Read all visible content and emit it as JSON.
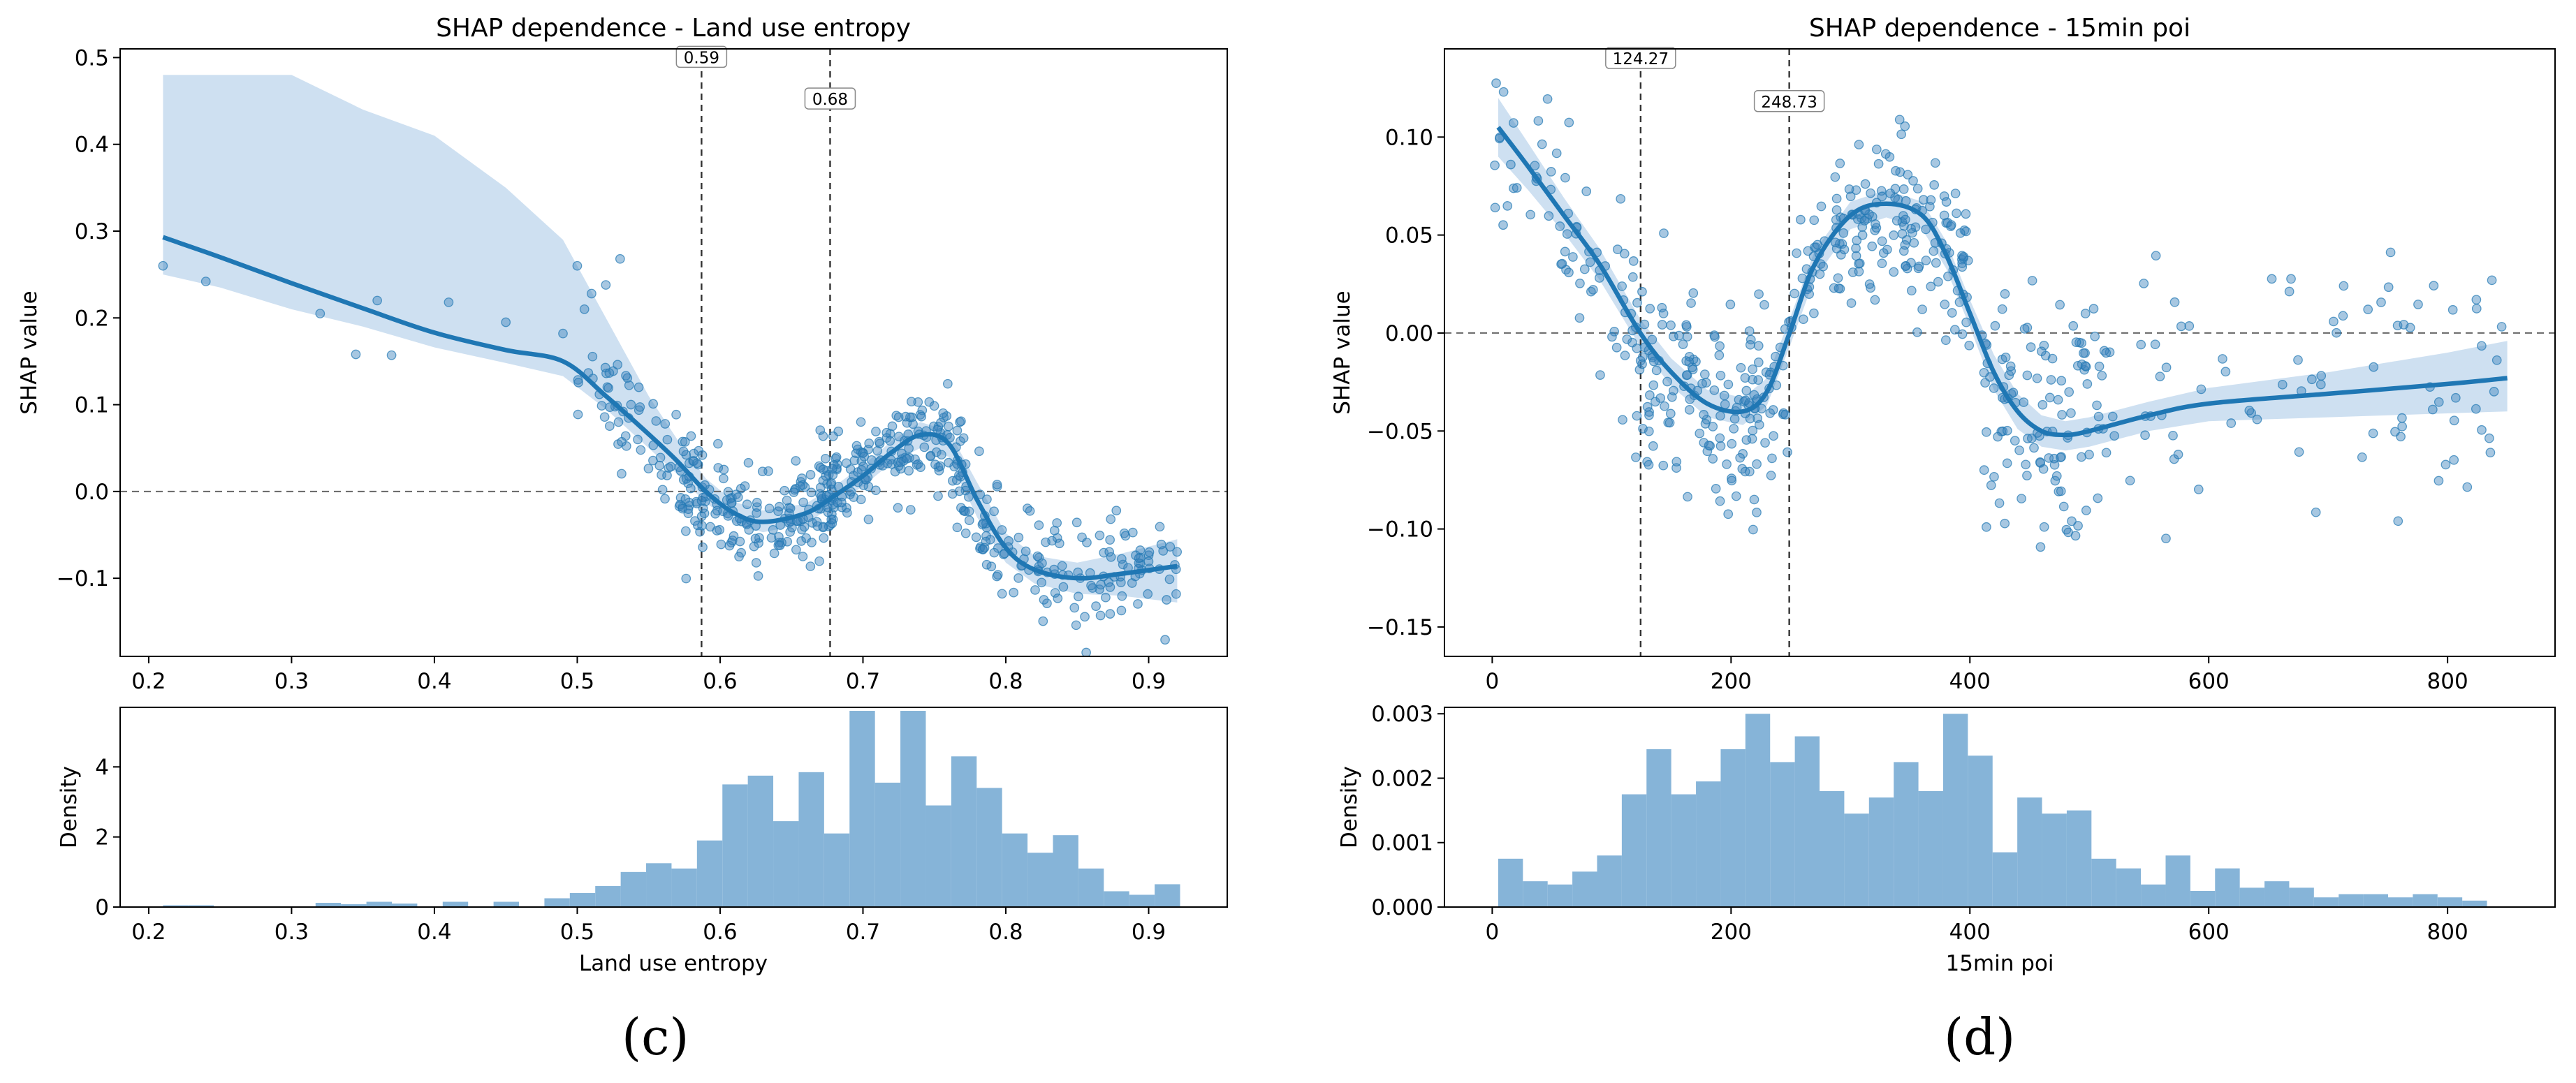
{
  "figure": {
    "panels": [
      "(c)",
      "(d)"
    ]
  },
  "colors": {
    "point": "#3b83bd",
    "line": "#1f77b4",
    "band": "#c6dbef",
    "hist": "#86b4d8"
  },
  "chart_data": [
    {
      "type": "scatter",
      "title": "SHAP dependence - Land use entropy",
      "xlabel": "",
      "ylabel": "SHAP value",
      "xlim": [
        0.18,
        0.955
      ],
      "ylim": [
        -0.19,
        0.51
      ],
      "xticks": [
        0.2,
        0.3,
        0.4,
        0.5,
        0.6,
        0.7,
        0.8,
        0.9
      ],
      "xtick_labels": [
        "0.2",
        "0.3",
        "0.4",
        "0.5",
        "0.6",
        "0.7",
        "0.8",
        "0.9"
      ],
      "yticks": [
        -0.1,
        0.0,
        0.1,
        0.2,
        0.3,
        0.4,
        0.5
      ],
      "ytick_labels": [
        "−0.1",
        "0.0",
        "0.1",
        "0.2",
        "0.3",
        "0.4",
        "0.5"
      ],
      "hline": 0.0,
      "vlines": [
        {
          "x": 0.587,
          "label": "0.59",
          "label_y": 0.5
        },
        {
          "x": 0.677,
          "label": "0.68",
          "label_y": 0.452
        }
      ],
      "trend": {
        "x": [
          0.21,
          0.25,
          0.3,
          0.35,
          0.4,
          0.45,
          0.49,
          0.52,
          0.55,
          0.57,
          0.59,
          0.61,
          0.63,
          0.66,
          0.68,
          0.7,
          0.72,
          0.74,
          0.76,
          0.78,
          0.8,
          0.82,
          0.85,
          0.88,
          0.92
        ],
        "y": [
          0.293,
          0.27,
          0.24,
          0.211,
          0.183,
          0.163,
          0.15,
          0.11,
          0.066,
          0.035,
          0.0,
          -0.025,
          -0.035,
          -0.025,
          -0.005,
          0.018,
          0.045,
          0.065,
          0.055,
          -0.01,
          -0.065,
          -0.09,
          -0.1,
          -0.095,
          -0.086
        ],
        "upper": [
          0.48,
          0.48,
          0.48,
          0.44,
          0.41,
          0.35,
          0.29,
          0.2,
          0.11,
          0.06,
          0.015,
          -0.012,
          -0.022,
          -0.014,
          0.006,
          0.03,
          0.058,
          0.08,
          0.07,
          0.01,
          -0.048,
          -0.074,
          -0.082,
          -0.072,
          -0.055
        ],
        "lower": [
          0.25,
          0.235,
          0.21,
          0.19,
          0.166,
          0.148,
          0.133,
          0.095,
          0.05,
          0.02,
          -0.013,
          -0.037,
          -0.047,
          -0.037,
          -0.016,
          0.006,
          0.033,
          0.05,
          0.04,
          -0.03,
          -0.082,
          -0.106,
          -0.118,
          -0.12,
          -0.128
        ]
      },
      "scatter_clusters": [
        {
          "x": [
            0.21,
            0.24,
            0.32,
            0.345,
            0.36,
            0.37,
            0.41,
            0.45,
            0.49,
            0.5,
            0.505,
            0.51,
            0.52,
            0.53
          ],
          "y": [
            0.26,
            0.242,
            0.205,
            0.158,
            0.22,
            0.157,
            0.218,
            0.195,
            0.182,
            0.26,
            0.21,
            0.228,
            0.238,
            0.268
          ],
          "n": 0
        },
        {
          "x0": 0.5,
          "x1": 0.59,
          "yc0": 0.14,
          "yc1": 0.0,
          "sd": 0.03,
          "n": 75
        },
        {
          "x0": 0.575,
          "x1": 0.68,
          "yc0": -0.03,
          "yc1": -0.02,
          "sd": 0.028,
          "n": 160
        },
        {
          "x0": 0.67,
          "x1": 0.775,
          "yc0": 0.02,
          "yc1": 0.06,
          "sd": 0.025,
          "n": 170
        },
        {
          "x0": 0.765,
          "x1": 0.92,
          "yc0": -0.09,
          "yc1": -0.09,
          "sd": 0.032,
          "n": 150
        }
      ],
      "histogram": {
        "ylabel": "Density",
        "xlabel": "Land use entropy",
        "ylim": [
          0,
          5.7
        ],
        "yticks": [
          0,
          2,
          4
        ],
        "ytick_labels": [
          "0",
          "2",
          "4"
        ],
        "bin_start": 0.21,
        "bin_width": 0.0178,
        "values": [
          0.05,
          0.05,
          0.0,
          0.0,
          0.0,
          0.0,
          0.12,
          0.08,
          0.15,
          0.1,
          0.0,
          0.15,
          0.0,
          0.15,
          0.0,
          0.25,
          0.4,
          0.6,
          1.0,
          1.25,
          1.1,
          1.9,
          3.5,
          3.75,
          2.45,
          3.85,
          2.1,
          5.6,
          3.55,
          5.6,
          2.9,
          4.3,
          3.4,
          2.1,
          1.55,
          2.05,
          1.1,
          0.45,
          0.35,
          0.65
        ]
      }
    },
    {
      "type": "scatter",
      "title": "SHAP dependence - 15min poi",
      "xlabel": "",
      "ylabel": "SHAP value",
      "xlim": [
        -40,
        890
      ],
      "ylim": [
        -0.165,
        0.145
      ],
      "xticks": [
        0,
        200,
        400,
        600,
        800
      ],
      "xtick_labels": [
        "0",
        "200",
        "400",
        "600",
        "800"
      ],
      "yticks": [
        -0.15,
        -0.1,
        -0.05,
        0.0,
        0.05,
        0.1
      ],
      "ytick_labels": [
        "−0.15",
        "−0.10",
        "−0.05",
        "0.00",
        "0.05",
        "0.10"
      ],
      "hline": 0.0,
      "vlines": [
        {
          "x": 124.27,
          "label": "124.27",
          "label_y": 0.14
        },
        {
          "x": 248.73,
          "label": "248.73",
          "label_y": 0.118
        }
      ],
      "trend": {
        "x": [
          5,
          30,
          60,
          90,
          124,
          150,
          180,
          210,
          230,
          249,
          270,
          300,
          330,
          360,
          380,
          400,
          420,
          440,
          460,
          480,
          500,
          550,
          600,
          700,
          800,
          850
        ],
        "y": [
          0.105,
          0.085,
          0.06,
          0.035,
          0.0,
          -0.02,
          -0.036,
          -0.04,
          -0.03,
          0.0,
          0.035,
          0.06,
          0.066,
          0.06,
          0.04,
          0.01,
          -0.02,
          -0.04,
          -0.05,
          -0.052,
          -0.05,
          -0.042,
          -0.036,
          -0.031,
          -0.026,
          -0.023
        ],
        "upper": [
          0.12,
          0.097,
          0.069,
          0.043,
          0.007,
          -0.013,
          -0.029,
          -0.033,
          -0.023,
          0.007,
          0.042,
          0.067,
          0.073,
          0.067,
          0.047,
          0.017,
          -0.011,
          -0.031,
          -0.042,
          -0.045,
          -0.043,
          -0.035,
          -0.028,
          -0.02,
          -0.01,
          -0.004
        ],
        "lower": [
          0.09,
          0.073,
          0.051,
          0.027,
          -0.007,
          -0.027,
          -0.043,
          -0.047,
          -0.037,
          -0.007,
          0.028,
          0.053,
          0.059,
          0.053,
          0.033,
          0.003,
          -0.029,
          -0.049,
          -0.058,
          -0.06,
          -0.058,
          -0.05,
          -0.045,
          -0.043,
          -0.041,
          -0.04
        ]
      },
      "scatter_clusters": [
        {
          "x0": 0,
          "x1": 125,
          "yc0": 0.1,
          "yc1": 0.0,
          "sd": 0.022,
          "n": 70
        },
        {
          "x0": 120,
          "x1": 250,
          "yc0": -0.04,
          "yc1": -0.045,
          "sd": 0.025,
          "n": 170
        },
        {
          "x0": 250,
          "x1": 400,
          "yc0": 0.04,
          "yc1": 0.06,
          "sd": 0.02,
          "n": 180
        },
        {
          "x0": 410,
          "x1": 520,
          "yc0": -0.06,
          "yc1": -0.05,
          "sd": 0.035,
          "n": 120
        },
        {
          "x0": 520,
          "x1": 850,
          "yc0": -0.03,
          "yc1": -0.02,
          "sd": 0.035,
          "n": 80
        }
      ],
      "histogram": {
        "ylabel": "Density",
        "xlabel": "15min poi",
        "ylim": [
          0,
          0.0031
        ],
        "yticks": [
          0,
          0.001,
          0.002,
          0.003
        ],
        "ytick_labels": [
          "0.000",
          "0.001",
          "0.002",
          "0.003"
        ],
        "bin_start": 5,
        "bin_width": 20.7,
        "values": [
          0.00075,
          0.0004,
          0.00035,
          0.00055,
          0.0008,
          0.00175,
          0.00245,
          0.00175,
          0.00195,
          0.00245,
          0.003,
          0.00225,
          0.00265,
          0.0018,
          0.00145,
          0.0017,
          0.00225,
          0.0018,
          0.003,
          0.00235,
          0.00085,
          0.0017,
          0.00145,
          0.0015,
          0.00075,
          0.0006,
          0.00035,
          0.0008,
          0.00025,
          0.0006,
          0.0003,
          0.0004,
          0.0003,
          0.00015,
          0.0002,
          0.0002,
          0.00015,
          0.0002,
          0.00015,
          0.0001
        ]
      }
    }
  ]
}
